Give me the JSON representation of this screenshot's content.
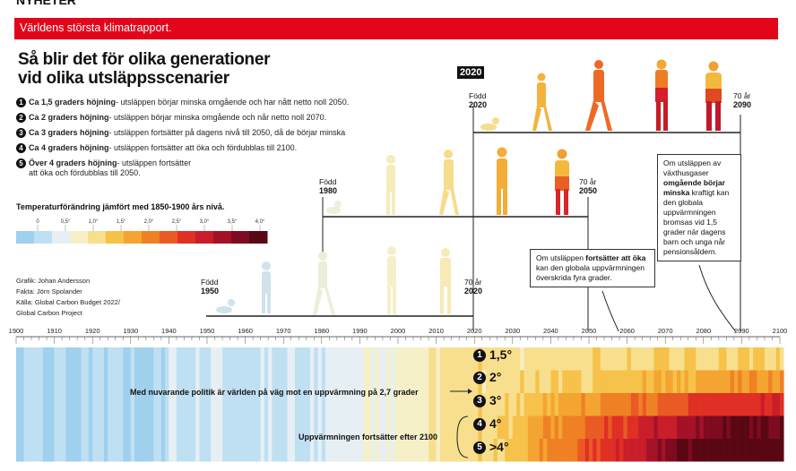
{
  "header": {
    "top_cut": "NYHETER",
    "banner": "Världens största klimatrapport."
  },
  "title": {
    "line1": "Så blir det för olika generationer",
    "line2": "vid olika utsläppsscenarier"
  },
  "scenarios": [
    {
      "n": "1",
      "bold": "Ca 1,5 graders höjning",
      "text": "- utsläppen börjar minska omgående och har nått netto noll 2050."
    },
    {
      "n": "2",
      "bold": "Ca 2 graders höjning",
      "text": "- utsläppen börjar minska omgående och når netto noll 2070."
    },
    {
      "n": "3",
      "bold": "Ca 3 graders höjning",
      "text": "- utsläppen fortsätter på dagens nivå till 2050, då de börjar minska"
    },
    {
      "n": "4",
      "bold": "Ca 4 graders höjning",
      "text": "- utsläppen fortsätter att öka och fördubblas till 2100."
    },
    {
      "n": "5",
      "bold": "Över 4 graders höjning",
      "text": "- utsläppen fortsätter",
      "text2": "att öka och fördubblas till 2050."
    }
  ],
  "legend": {
    "title": "Temperaturförändring jämfört med 1850-1900 års nivå.",
    "ticks": [
      "0",
      "0,5°",
      "1,0°",
      "1,5°",
      "2,0°",
      "2,5°",
      "3,0°",
      "3,5°",
      "4,0°"
    ],
    "colors": [
      "#9fd0ee",
      "#bfe0f2",
      "#e6f0f4",
      "#f6f0c8",
      "#f8df8e",
      "#f6c24a",
      "#f4a531",
      "#ef8124",
      "#ea5a24",
      "#e02f24",
      "#c91e2a",
      "#a51228",
      "#7e0b1f",
      "#5a0714"
    ]
  },
  "credits": [
    "Grafik: Johan Andersson",
    "Fakta: Jörn Spolander",
    "Källa: Global Carbon Budget 2022/",
    "Global Carbon Project"
  ],
  "generations": [
    {
      "born_label": "Född",
      "born_year": "1950",
      "age_label": "70 år",
      "age_year": "2020"
    },
    {
      "born_label": "Född",
      "born_year": "1980",
      "age_label": "70 år",
      "age_year": "2050"
    },
    {
      "born_label": "Född",
      "born_year": "2020",
      "age_label": "70 år",
      "age_year": "2090"
    }
  ],
  "highlight_year": "2020",
  "callouts": {
    "c1": {
      "pre": "Om utsläppen ",
      "bold": "fortsätter att öka",
      "post": " kan den globala uppvärmningen överskrida fyra grader."
    },
    "c2": {
      "pre": "Om utsläppen av växthusgaser ",
      "bold": "omgående börjar minska",
      "post": " kraftigt kan den globala uppvärmningen bromsas vid 1,5 grader när dagens barn och unga når pensionsåldern."
    }
  },
  "chart_data": {
    "type": "heatmap",
    "title": "Temperaturförändring jämfört med 1850-1900 års nivå.",
    "x_ticks": [
      1900,
      1910,
      1920,
      1930,
      1940,
      1950,
      1960,
      1970,
      1980,
      1990,
      2000,
      2010,
      2020,
      2030,
      2040,
      2050,
      2060,
      2070,
      2080,
      2090,
      2100
    ],
    "xlim": [
      1900,
      2100
    ],
    "color_scale_range": [
      0,
      4.0
    ],
    "historical_end": 2021,
    "rows": [
      {
        "label": "1,5°",
        "scenario": 1,
        "end_warming": 1.5
      },
      {
        "label": "2°",
        "scenario": 2,
        "end_warming": 2.0
      },
      {
        "label": "3°",
        "scenario": 3,
        "end_warming": 3.0
      },
      {
        "label": "4°",
        "scenario": 4,
        "end_warming": 4.0
      },
      {
        "label": ">4°",
        "scenario": 5,
        "end_warming": 4.5
      }
    ],
    "annotations": [
      "Med nuvarande politik är världen på väg mot en uppvärmning på 2,7 grader",
      "Uppvärmningen fortsätter efter 2100"
    ]
  }
}
